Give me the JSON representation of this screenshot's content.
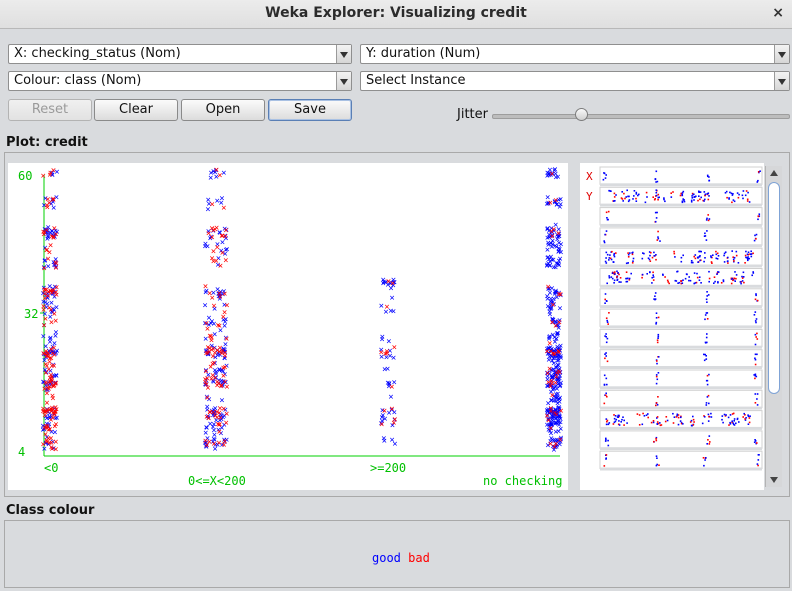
{
  "window": {
    "title": "Weka Explorer: Visualizing credit",
    "close_glyph": "×"
  },
  "controls": {
    "x_axis": "X: checking_status (Nom)",
    "y_axis": "Y: duration (Num)",
    "colour": "Colour: class (Nom)",
    "instance": "Select Instance",
    "reset_label": "Reset",
    "clear_label": "Clear",
    "open_label": "Open",
    "save_label": "Save",
    "jitter_label": "Jitter",
    "jitter_level": 0.3
  },
  "plot": {
    "label": "Plot: credit",
    "y_ticks": [
      "60",
      "32",
      "4"
    ],
    "x_categories": [
      "<0",
      "0<=X<200",
      ">=200",
      "no checking"
    ],
    "axis_color": "#00d000"
  },
  "chart_data": {
    "type": "scatter",
    "x": "checking_status",
    "y": "duration",
    "categories": [
      "<0",
      "0<=X<200",
      ">=200",
      "no checking"
    ],
    "ylim": [
      4,
      60
    ],
    "y_ticks": [
      60,
      32,
      4
    ],
    "colour_by": "class",
    "series": [
      {
        "name": "good",
        "color": "#0000ff",
        "approx_points_per_category": [
          140,
          165,
          50,
          345
        ]
      },
      {
        "name": "bad",
        "color": "#ff0000",
        "approx_points_per_category": [
          135,
          105,
          14,
          46
        ]
      }
    ]
  },
  "matrix": {
    "x_marker": "X",
    "y_marker": "Y",
    "rows": 15
  },
  "class_colour": {
    "label": "Class colour",
    "items": [
      {
        "name": "good",
        "color": "#0000ff"
      },
      {
        "name": "bad",
        "color": "#ff0000"
      }
    ]
  }
}
